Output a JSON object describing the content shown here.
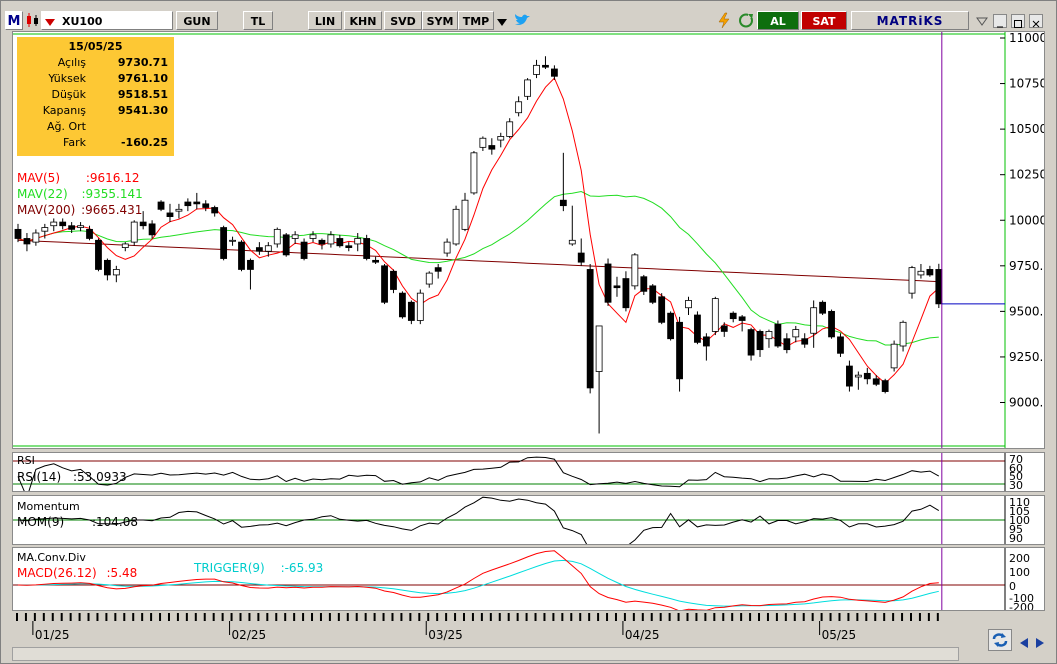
{
  "toolbar": {
    "menu_label": "M",
    "symbol": "XU100",
    "period": "GUN",
    "currency": "TL",
    "scale": "LIN",
    "mode_khn": "KHN",
    "mode_svd": "SVD",
    "mode_sym": "SYM",
    "mode_tmp": "TMP",
    "buy_label": "AL",
    "sell_label": "SAT",
    "brand": "MATRiKS"
  },
  "info_panel": {
    "date": "15/05/25",
    "rows": [
      {
        "label": "Açılış",
        "value": "9730.71"
      },
      {
        "label": "Yüksek",
        "value": "9761.10"
      },
      {
        "label": "Düşük",
        "value": "9518.51"
      },
      {
        "label": "Kapanış",
        "value": "9541.30"
      },
      {
        "label": "Ağ. Ort",
        "value": ""
      },
      {
        "label": "Fark",
        "value": "-160.25"
      }
    ]
  },
  "indicators": {
    "mav5": {
      "label": "MAV(5)",
      "value": ":9616.12",
      "color": "#ff0000"
    },
    "mav22": {
      "label": "MAV(22)",
      "value": ":9355.141",
      "color": "#00cc00"
    },
    "mav200": {
      "label": "MAV(200)",
      "value": ":9665.431",
      "color": "#800000"
    },
    "rsi_title": "RSI",
    "rsi_label": "RSI(14)",
    "rsi_value": ":53.0933",
    "mom_title": "Momentum",
    "mom_label": "MOM(9)",
    "mom_value": ":104.08",
    "macd_title": "MA.Conv.Div",
    "macd_label": "MACD(26.12)",
    "macd_value": ":5.48",
    "trigger_label": "TRIGGER(9)",
    "trigger_value": ":-65.93"
  },
  "chart_data": {
    "type": "candlestick",
    "x_ticks": [
      "01/25",
      "02/25",
      "03/25",
      "04/25",
      "05/25"
    ],
    "y_ticks": [
      9000,
      9250,
      9500,
      9750,
      10000,
      10250,
      10500,
      10750,
      11000
    ],
    "ylim": [
      8750,
      11000
    ],
    "candles": [
      [
        9950,
        9980,
        9880,
        9900
      ],
      [
        9900,
        9930,
        9830,
        9870
      ],
      [
        9880,
        9950,
        9860,
        9930
      ],
      [
        9940,
        9980,
        9900,
        9960
      ],
      [
        9970,
        10010,
        9940,
        9990
      ],
      [
        9990,
        10010,
        9950,
        9970
      ],
      [
        9970,
        9990,
        9930,
        9950
      ],
      [
        9960,
        9990,
        9940,
        9970
      ],
      [
        9950,
        9970,
        9890,
        9900
      ],
      [
        9890,
        9900,
        9720,
        9730
      ],
      [
        9780,
        9790,
        9670,
        9700
      ],
      [
        9700,
        9750,
        9660,
        9730
      ],
      [
        9850,
        9880,
        9830,
        9870
      ],
      [
        9880,
        10000,
        9860,
        9990
      ],
      [
        9990,
        10050,
        9950,
        9970
      ],
      [
        9980,
        10000,
        9900,
        9920
      ],
      [
        10100,
        10110,
        10050,
        10060
      ],
      [
        10040,
        10090,
        9990,
        10020
      ],
      [
        10050,
        10090,
        10010,
        10060
      ],
      [
        10100,
        10120,
        10050,
        10080
      ],
      [
        10100,
        10150,
        10060,
        10090
      ],
      [
        10090,
        10110,
        10050,
        10070
      ],
      [
        10070,
        10080,
        10020,
        10040
      ],
      [
        9960,
        9970,
        9780,
        9790
      ],
      [
        9890,
        9910,
        9860,
        9890
      ],
      [
        9880,
        9890,
        9720,
        9730
      ],
      [
        9780,
        9790,
        9620,
        9730
      ],
      [
        9850,
        9880,
        9810,
        9830
      ],
      [
        9830,
        9880,
        9800,
        9860
      ],
      [
        9870,
        9960,
        9850,
        9950
      ],
      [
        9920,
        9930,
        9800,
        9810
      ],
      [
        9900,
        9940,
        9870,
        9920
      ],
      [
        9880,
        9900,
        9780,
        9790
      ],
      [
        9900,
        9940,
        9880,
        9920
      ],
      [
        9890,
        9900,
        9840,
        9870
      ],
      [
        9870,
        9940,
        9850,
        9920
      ],
      [
        9900,
        9920,
        9850,
        9860
      ],
      [
        9860,
        9880,
        9830,
        9850
      ],
      [
        9870,
        9930,
        9830,
        9900
      ],
      [
        9900,
        9920,
        9780,
        9790
      ],
      [
        9780,
        9800,
        9760,
        9770
      ],
      [
        9750,
        9760,
        9540,
        9550
      ],
      [
        9720,
        9730,
        9600,
        9620
      ],
      [
        9600,
        9610,
        9460,
        9470
      ],
      [
        9550,
        9560,
        9430,
        9450
      ],
      [
        9450,
        9620,
        9430,
        9600
      ],
      [
        9650,
        9720,
        9630,
        9710
      ],
      [
        9740,
        9760,
        9680,
        9720
      ],
      [
        9820,
        9900,
        9800,
        9880
      ],
      [
        9870,
        10080,
        9860,
        10060
      ],
      [
        9950,
        10150,
        9940,
        10110
      ],
      [
        10150,
        10380,
        10140,
        10370
      ],
      [
        10400,
        10460,
        10380,
        10450
      ],
      [
        10410,
        10450,
        10360,
        10390
      ],
      [
        10440,
        10480,
        10400,
        10460
      ],
      [
        10460,
        10560,
        10450,
        10540
      ],
      [
        10590,
        10680,
        10570,
        10650
      ],
      [
        10680,
        10780,
        10660,
        10770
      ],
      [
        10800,
        10880,
        10780,
        10850
      ],
      [
        10850,
        10900,
        10830,
        10840
      ],
      [
        10830,
        10850,
        10770,
        10790
      ],
      [
        10110,
        10370,
        10050,
        10080
      ],
      [
        9870,
        10080,
        9860,
        9890
      ],
      [
        9820,
        9900,
        9750,
        9770
      ],
      [
        9730,
        9760,
        9050,
        9080
      ],
      [
        9170,
        9420,
        8830,
        9420
      ],
      [
        9760,
        9790,
        9530,
        9550
      ],
      [
        9640,
        9690,
        9580,
        9630
      ],
      [
        9680,
        9720,
        9500,
        9520
      ],
      [
        9640,
        9820,
        9620,
        9810
      ],
      [
        9690,
        9700,
        9590,
        9610
      ],
      [
        9640,
        9650,
        9540,
        9550
      ],
      [
        9580,
        9600,
        9430,
        9440
      ],
      [
        9490,
        9500,
        9340,
        9350
      ],
      [
        9440,
        9470,
        9060,
        9130
      ],
      [
        9520,
        9580,
        9480,
        9560
      ],
      [
        9480,
        9500,
        9320,
        9330
      ],
      [
        9360,
        9380,
        9230,
        9310
      ],
      [
        9390,
        9580,
        9370,
        9570
      ],
      [
        9420,
        9440,
        9360,
        9390
      ],
      [
        9490,
        9500,
        9440,
        9460
      ],
      [
        9470,
        9480,
        9390,
        9450
      ],
      [
        9400,
        9410,
        9230,
        9260
      ],
      [
        9390,
        9400,
        9250,
        9290
      ],
      [
        9350,
        9400,
        9300,
        9390
      ],
      [
        9430,
        9450,
        9300,
        9310
      ],
      [
        9350,
        9380,
        9270,
        9290
      ],
      [
        9360,
        9420,
        9330,
        9400
      ],
      [
        9350,
        9380,
        9300,
        9320
      ],
      [
        9380,
        9560,
        9300,
        9520
      ],
      [
        9550,
        9560,
        9480,
        9490
      ],
      [
        9500,
        9510,
        9350,
        9360
      ],
      [
        9360,
        9380,
        9250,
        9270
      ],
      [
        9200,
        9230,
        9060,
        9090
      ],
      [
        9140,
        9170,
        9070,
        9150
      ],
      [
        9160,
        9190,
        9100,
        9130
      ],
      [
        9130,
        9150,
        9090,
        9100
      ],
      [
        9120,
        9130,
        9050,
        9060
      ],
      [
        9190,
        9340,
        9170,
        9320
      ],
      [
        9310,
        9450,
        9280,
        9440
      ],
      [
        9600,
        9750,
        9570,
        9740
      ],
      [
        9700,
        9760,
        9680,
        9720
      ],
      [
        9730,
        9750,
        9690,
        9700
      ],
      [
        9730,
        9761.1,
        9518.51,
        9541.3
      ]
    ]
  }
}
